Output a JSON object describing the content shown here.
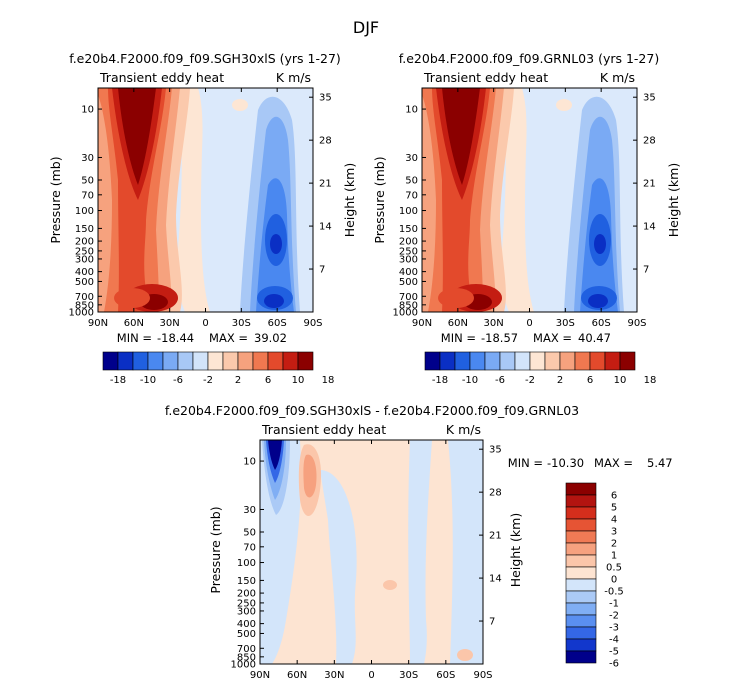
{
  "figure_title": "DJF",
  "colors": {
    "red_dark": "#8b0000",
    "blue_dark": "#00008b",
    "background": "#ffffff"
  },
  "chart_data": [
    {
      "id": "panel1",
      "type": "heatmap",
      "title": "f.e20b4.F2000.f09_f09.SGH30xlS (yrs 1-27)",
      "left_label": "Transient eddy heat",
      "right_label": "K m/s",
      "xlabel": "",
      "ylabel": "Pressure (mb)",
      "ylabel_right": "Height (km)",
      "x_ticks": [
        "90N",
        "60N",
        "30N",
        "0",
        "30S",
        "60S",
        "90S"
      ],
      "x_tick_lats": [
        90,
        60,
        30,
        0,
        -30,
        -60,
        -90
      ],
      "pressure_ticks": [
        "10",
        "30",
        "50",
        "70",
        "100",
        "150",
        "200",
        "250",
        "300",
        "400",
        "500",
        "700",
        "850",
        "1000"
      ],
      "pressure_values": [
        10,
        30,
        50,
        70,
        100,
        150,
        200,
        250,
        300,
        400,
        500,
        700,
        850,
        1000
      ],
      "height_ticks": [
        "35",
        "28",
        "21",
        "14",
        "7"
      ],
      "height_values": [
        35,
        28,
        21,
        14,
        7
      ],
      "stats": {
        "min_label": "MIN =",
        "min": "-18.44",
        "max_label": "MAX =",
        "max": "39.02"
      },
      "colorbar_labels": [
        "-18",
        "-10",
        "-6",
        "-2",
        "2",
        "6",
        "10",
        "18"
      ],
      "colorbar_colors": [
        "#00008b",
        "#0a2fc4",
        "#2060e0",
        "#4a88f0",
        "#7aaaf4",
        "#a8c8f6",
        "#d2e4fa",
        "#fde6d4",
        "#fbc9ac",
        "#f6a27e",
        "#f07850",
        "#e34a2c",
        "#c41d12",
        "#8b0000"
      ]
    },
    {
      "id": "panel2",
      "type": "heatmap",
      "title": "f.e20b4.F2000.f09_f09.GRNL03 (yrs 1-27)",
      "left_label": "Transient eddy heat",
      "right_label": "K m/s",
      "xlabel": "",
      "ylabel": "Pressure (mb)",
      "ylabel_right": "Height (km)",
      "x_ticks": [
        "90N",
        "60N",
        "30N",
        "0",
        "30S",
        "60S",
        "90S"
      ],
      "x_tick_lats": [
        90,
        60,
        30,
        0,
        -30,
        -60,
        -90
      ],
      "pressure_ticks": [
        "10",
        "30",
        "50",
        "70",
        "100",
        "150",
        "200",
        "250",
        "300",
        "400",
        "500",
        "700",
        "850",
        "1000"
      ],
      "pressure_values": [
        10,
        30,
        50,
        70,
        100,
        150,
        200,
        250,
        300,
        400,
        500,
        700,
        850,
        1000
      ],
      "height_ticks": [
        "35",
        "28",
        "21",
        "14",
        "7"
      ],
      "height_values": [
        35,
        28,
        21,
        14,
        7
      ],
      "stats": {
        "min_label": "MIN =",
        "min": "-18.57",
        "max_label": "MAX =",
        "max": "40.47"
      },
      "colorbar_labels": [
        "-18",
        "-10",
        "-6",
        "-2",
        "2",
        "6",
        "10",
        "18"
      ],
      "colorbar_colors": [
        "#00008b",
        "#0a2fc4",
        "#2060e0",
        "#4a88f0",
        "#7aaaf4",
        "#a8c8f6",
        "#d2e4fa",
        "#fde6d4",
        "#fbc9ac",
        "#f6a27e",
        "#f07850",
        "#e34a2c",
        "#c41d12",
        "#8b0000"
      ]
    },
    {
      "id": "panel3",
      "type": "heatmap",
      "title": "f.e20b4.F2000.f09_f09.SGH30xlS - f.e20b4.F2000.f09_f09.GRNL03",
      "left_label": "Transient eddy heat",
      "right_label": "K m/s",
      "xlabel": "",
      "ylabel": "Pressure (mb)",
      "ylabel_right": "Height (km)",
      "x_ticks": [
        "90N",
        "60N",
        "30N",
        "0",
        "30S",
        "60S",
        "90S"
      ],
      "x_tick_lats": [
        90,
        60,
        30,
        0,
        -30,
        -60,
        -90
      ],
      "pressure_ticks": [
        "10",
        "30",
        "50",
        "70",
        "100",
        "150",
        "200",
        "250",
        "300",
        "400",
        "500",
        "700",
        "850",
        "1000"
      ],
      "pressure_values": [
        10,
        30,
        50,
        70,
        100,
        150,
        200,
        250,
        300,
        400,
        500,
        700,
        850,
        1000
      ],
      "height_ticks": [
        "35",
        "28",
        "21",
        "14",
        "7"
      ],
      "height_values": [
        35,
        28,
        21,
        14,
        7
      ],
      "stats": {
        "min_label": "MIN =",
        "min": "-10.30",
        "max_label": "MAX =",
        "max": "5.47"
      },
      "colorbar_labels": [
        "6",
        "5",
        "4",
        "3",
        "2",
        "1",
        "0.5",
        "0",
        "-0.5",
        "-1",
        "-2",
        "-3",
        "-4",
        "-5",
        "-6"
      ],
      "colorbar_colors": [
        "#8b0000",
        "#b31410",
        "#d42e1c",
        "#e65434",
        "#f07a55",
        "#f6a17f",
        "#fbc6aa",
        "#fde4d2",
        "#d3e5fa",
        "#abcaf6",
        "#80aef4",
        "#5a8ff0",
        "#3467e6",
        "#1237cc",
        "#00008b"
      ]
    }
  ]
}
